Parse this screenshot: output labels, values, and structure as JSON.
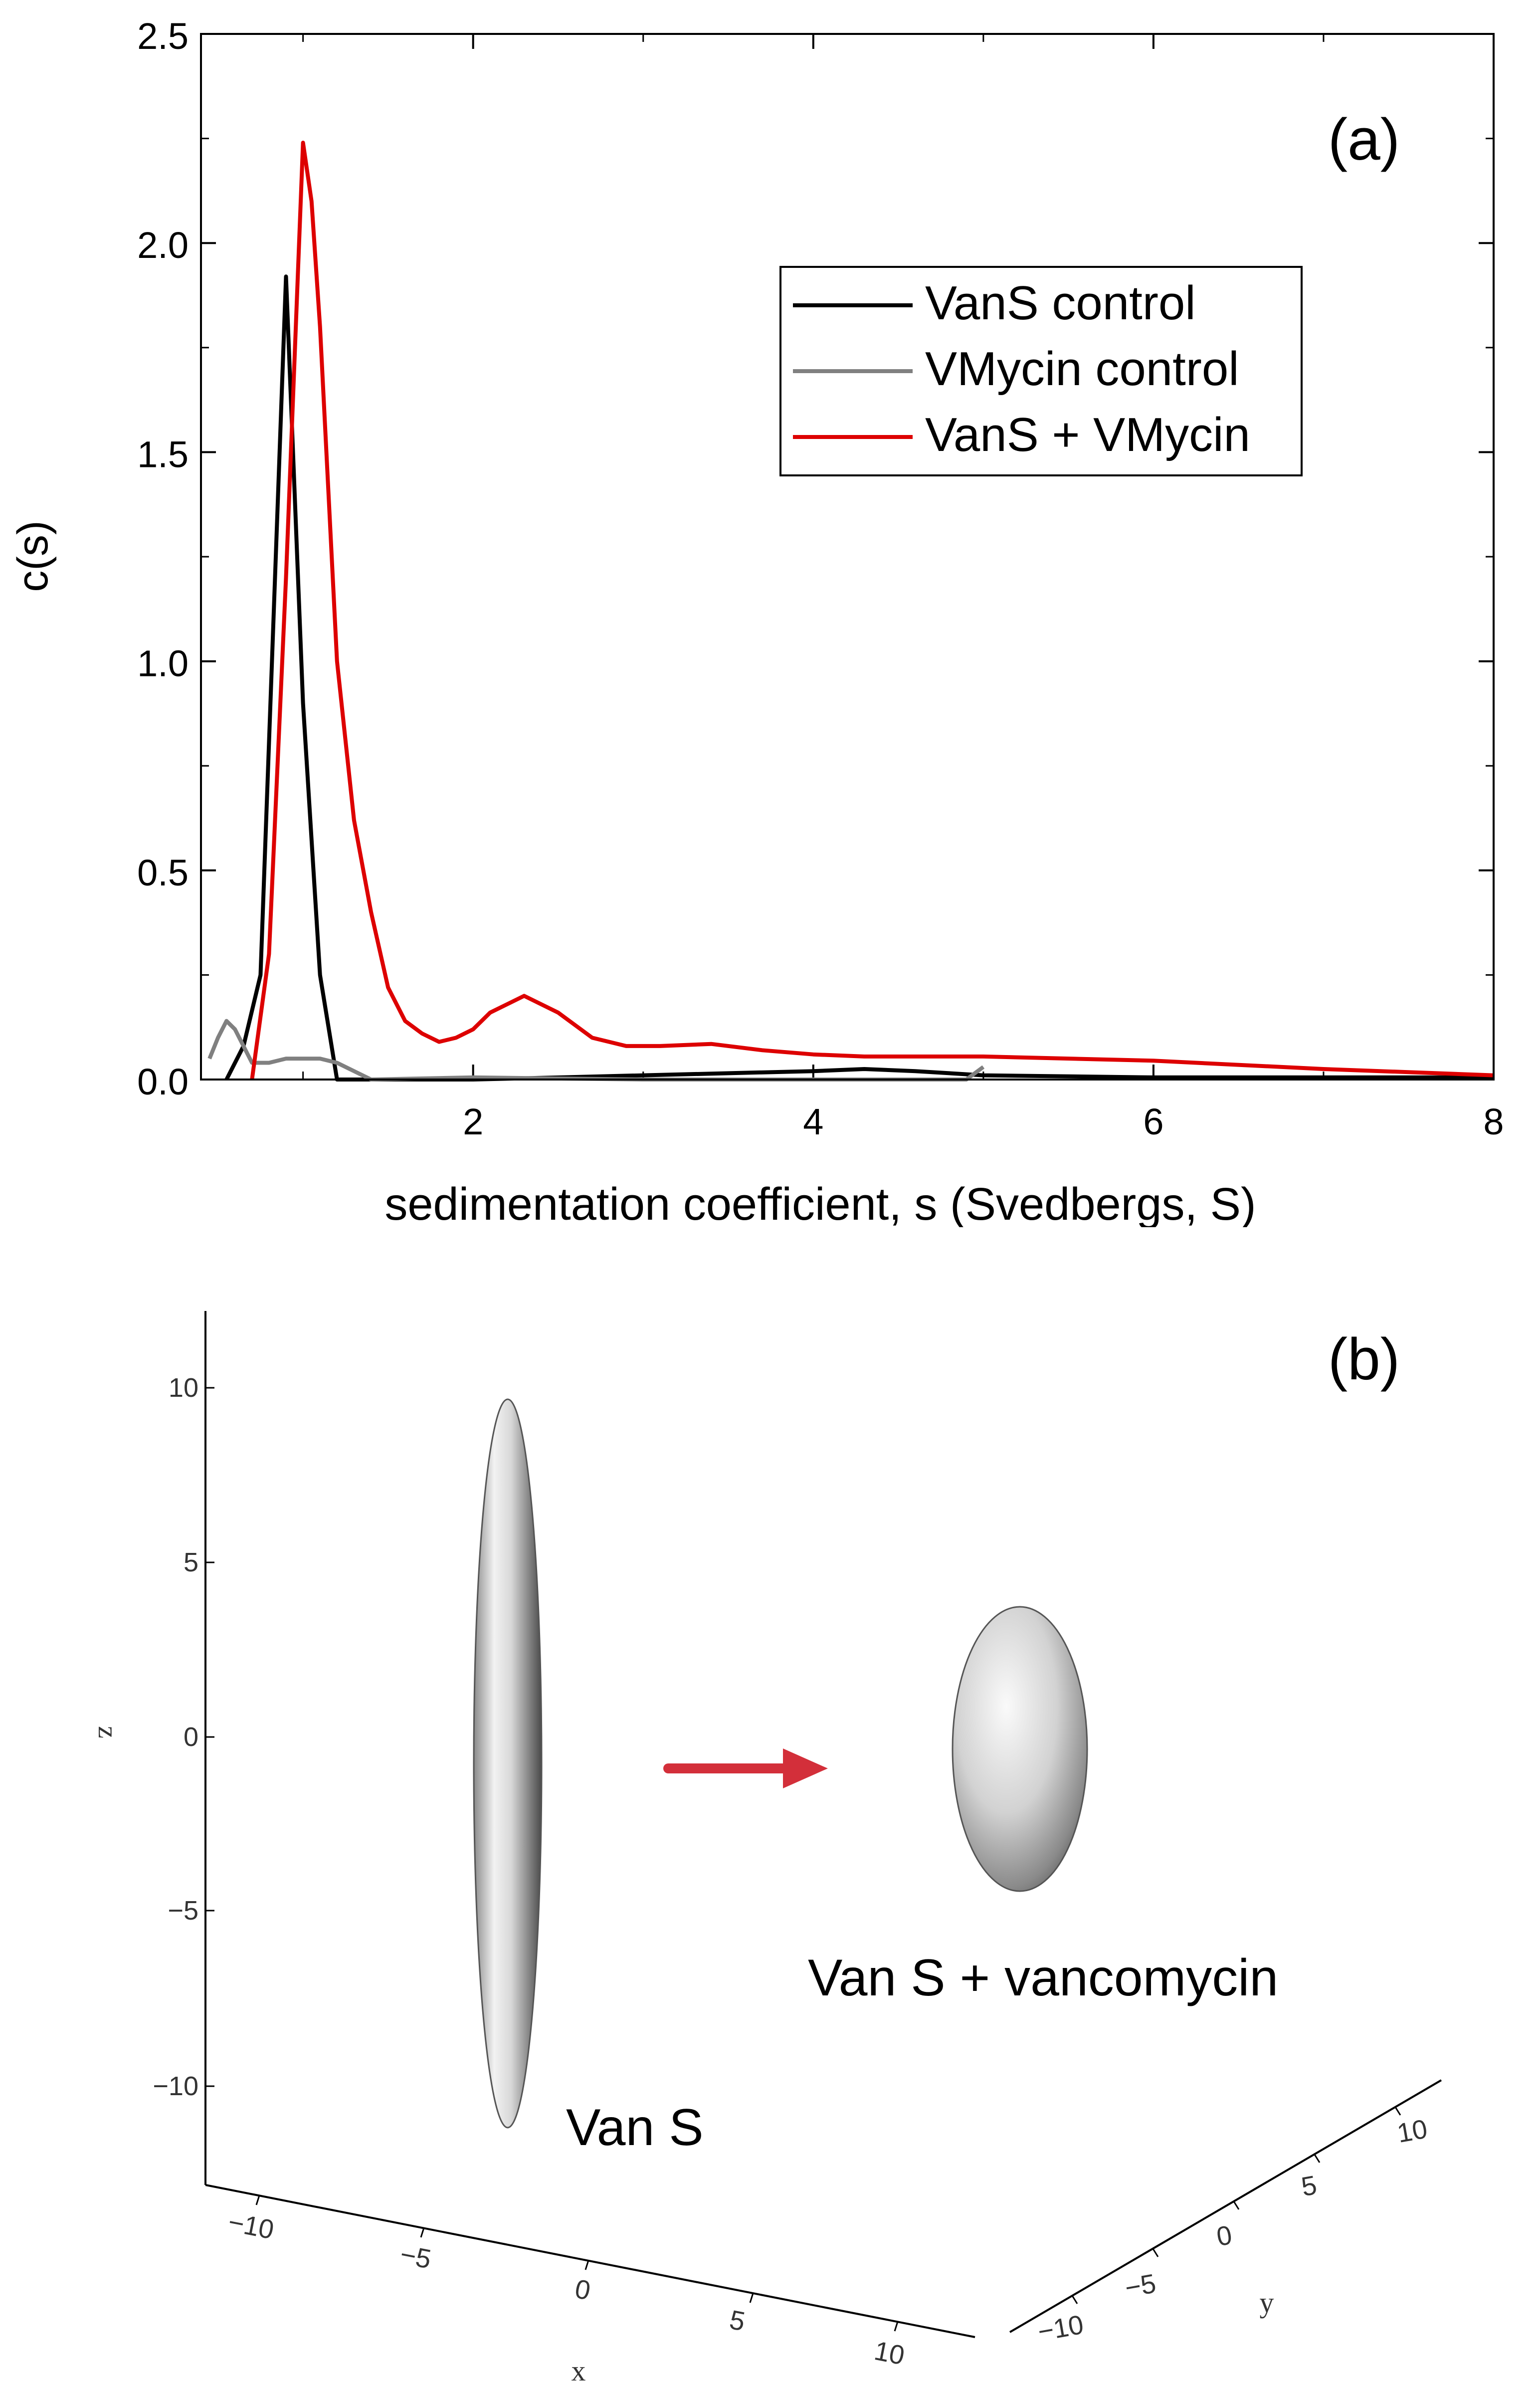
{
  "chart_data": [
    {
      "type": "line",
      "panel_label": "(a)",
      "title": "",
      "xlabel": "sedimentation coefficient, s (Svedbergs, S)",
      "ylabel": "c(s)",
      "xlim": [
        0.4,
        8
      ],
      "ylim": [
        0,
        2.5
      ],
      "xticks": [
        "2",
        "4",
        "6",
        "8"
      ],
      "yticks": [
        "0.0",
        "0.5",
        "1.0",
        "1.5",
        "2.0",
        "2.5"
      ],
      "legend_position": "upper-right",
      "series": [
        {
          "name": "VanS control",
          "color": "#000000",
          "x": [
            0.55,
            0.65,
            0.75,
            0.9,
            1.0,
            1.1,
            1.2,
            1.4,
            2.0,
            3.0,
            4.0,
            4.3,
            4.6,
            5.0,
            6.0,
            7.0,
            8.0
          ],
          "y": [
            0.0,
            0.08,
            0.25,
            1.92,
            0.9,
            0.25,
            0.0,
            0.0,
            0.0,
            0.01,
            0.02,
            0.025,
            0.02,
            0.01,
            0.005,
            0.005,
            0.005
          ]
        },
        {
          "name": "VMycin control",
          "color": "#808080",
          "x": [
            0.45,
            0.5,
            0.55,
            0.6,
            0.7,
            0.8,
            0.9,
            1.0,
            1.1,
            1.2,
            1.4,
            2.0,
            3.0,
            4.0,
            4.9,
            5.0
          ],
          "y": [
            0.05,
            0.1,
            0.14,
            0.12,
            0.04,
            0.04,
            0.05,
            0.05,
            0.05,
            0.04,
            0.0,
            0.005,
            0.0,
            0.0,
            0.0,
            0.03
          ]
        },
        {
          "name": "VanS + VMycin",
          "color": "#dd0000",
          "x": [
            0.7,
            0.8,
            0.9,
            1.0,
            1.05,
            1.1,
            1.2,
            1.3,
            1.4,
            1.5,
            1.6,
            1.7,
            1.8,
            1.9,
            2.0,
            2.1,
            2.3,
            2.5,
            2.7,
            2.9,
            3.1,
            3.4,
            3.7,
            4.0,
            4.3,
            5.0,
            6.0,
            7.0,
            8.0
          ],
          "y": [
            0.0,
            0.3,
            1.2,
            2.24,
            2.1,
            1.8,
            1.0,
            0.62,
            0.4,
            0.22,
            0.14,
            0.11,
            0.09,
            0.1,
            0.12,
            0.16,
            0.2,
            0.16,
            0.1,
            0.08,
            0.08,
            0.085,
            0.07,
            0.06,
            0.055,
            0.055,
            0.045,
            0.025,
            0.01
          ]
        }
      ]
    },
    {
      "type": "3d-surface",
      "panel_label": "(b)",
      "axis_labels": {
        "x": "x",
        "y": "y",
        "z": "z"
      },
      "z_ticks": [
        "10",
        "5",
        "0",
        "−5",
        "−10"
      ],
      "x_ticks": [
        "−10",
        "−5",
        "0",
        "5",
        "10"
      ],
      "y_ticks": [
        "−10",
        "−5",
        "0",
        "5",
        "10"
      ],
      "objects": [
        {
          "name": "Van S",
          "label": "Van S",
          "shape": "elongated ellipsoid"
        },
        {
          "name": "Van S + vancomycin",
          "label": "Van S + vancomycin",
          "shape": "compact ellipsoid"
        }
      ],
      "arrow_color": "#d32f3a"
    }
  ]
}
